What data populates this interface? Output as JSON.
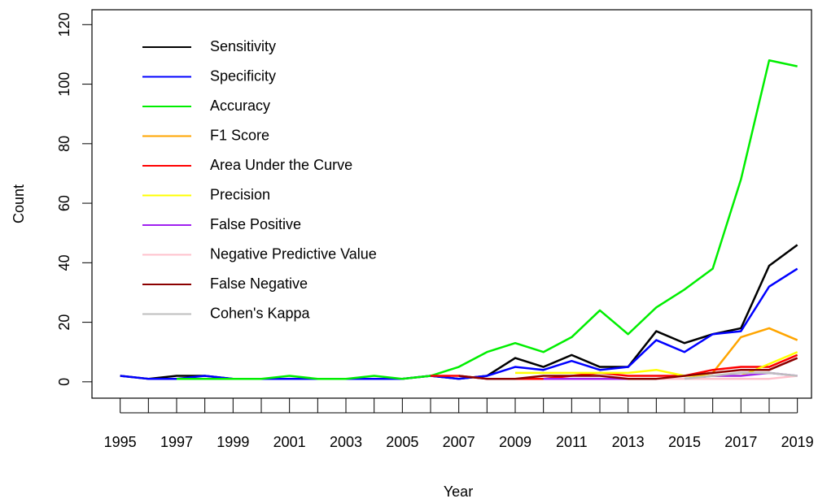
{
  "chart_data": {
    "type": "line",
    "x_label": "Year",
    "y_label": "Count",
    "x": [
      1995,
      1996,
      1997,
      1998,
      1999,
      2000,
      2001,
      2002,
      2003,
      2004,
      2005,
      2006,
      2007,
      2008,
      2009,
      2010,
      2011,
      2012,
      2013,
      2014,
      2015,
      2016,
      2017,
      2018,
      2019
    ],
    "series": [
      {
        "name": "Sensitivity",
        "color": "#000000",
        "values": [
          2,
          1,
          2,
          2,
          1,
          1,
          1,
          1,
          1,
          1,
          1,
          2,
          1,
          2,
          8,
          5,
          9,
          5,
          5,
          17,
          13,
          16,
          18,
          39,
          46
        ]
      },
      {
        "name": "Specificity",
        "color": "#0000ff",
        "values": [
          2,
          1,
          1,
          2,
          1,
          1,
          1,
          1,
          1,
          1,
          1,
          2,
          1,
          2,
          5,
          4,
          7,
          4,
          5,
          14,
          10,
          16,
          17,
          32,
          38
        ]
      },
      {
        "name": "Accuracy",
        "color": "#00ee00",
        "values": [
          null,
          null,
          1,
          1,
          1,
          1,
          2,
          1,
          1,
          2,
          1,
          2,
          5,
          10,
          13,
          10,
          15,
          24,
          16,
          25,
          31,
          38,
          68,
          108,
          106
        ]
      },
      {
        "name": "F1 Score",
        "color": "#ffa500",
        "values": [
          null,
          null,
          null,
          null,
          null,
          null,
          null,
          null,
          null,
          null,
          null,
          null,
          null,
          null,
          null,
          null,
          null,
          null,
          null,
          null,
          2,
          3,
          15,
          18,
          14
        ]
      },
      {
        "name": "Area Under the Curve",
        "color": "#ff0000",
        "values": [
          null,
          null,
          null,
          null,
          null,
          null,
          null,
          null,
          null,
          null,
          null,
          2,
          2,
          1,
          1,
          1,
          2,
          3,
          2,
          2,
          2,
          4,
          5,
          5,
          9
        ]
      },
      {
        "name": "Precision",
        "color": "#ffff00",
        "values": [
          null,
          null,
          null,
          null,
          null,
          null,
          null,
          null,
          null,
          null,
          null,
          null,
          null,
          null,
          3,
          3,
          3,
          3,
          3,
          4,
          2,
          2,
          2,
          6,
          10
        ]
      },
      {
        "name": "False Positive",
        "color": "#a020f0",
        "values": [
          null,
          null,
          null,
          null,
          null,
          null,
          null,
          null,
          null,
          null,
          null,
          null,
          null,
          null,
          null,
          1,
          1,
          1,
          1,
          1,
          1,
          2,
          2,
          3,
          2
        ]
      },
      {
        "name": " Negative Predictive Value",
        "color": "#ffc0cb",
        "values": [
          null,
          null,
          null,
          null,
          null,
          null,
          null,
          null,
          null,
          null,
          null,
          null,
          null,
          null,
          null,
          null,
          null,
          null,
          1,
          1,
          1,
          1,
          1,
          1,
          2
        ]
      },
      {
        "name": "False Negative",
        "color": "#8b0000",
        "values": [
          null,
          null,
          null,
          null,
          null,
          null,
          null,
          null,
          null,
          null,
          null,
          null,
          2,
          1,
          1,
          2,
          2,
          2,
          1,
          1,
          2,
          3,
          4,
          4,
          8
        ]
      },
      {
        "name": "Cohen's Kappa",
        "color": "#bebebe",
        "values": [
          null,
          null,
          null,
          null,
          null,
          null,
          null,
          null,
          null,
          null,
          null,
          null,
          null,
          null,
          null,
          null,
          null,
          null,
          null,
          null,
          1,
          2,
          3,
          3,
          2
        ]
      }
    ],
    "xlim": [
      1994,
      2019.5
    ],
    "ylim": [
      -5.5,
      125
    ],
    "xticks": [
      1995,
      1997,
      1999,
      2001,
      2003,
      2005,
      2007,
      2009,
      2011,
      2013,
      2015,
      2017,
      2019
    ],
    "xminorticks": [
      1996,
      1998,
      2000,
      2002,
      2004,
      2006,
      2008,
      2010,
      2012,
      2014,
      2016,
      2018
    ],
    "yticks": [
      0,
      20,
      40,
      60,
      80,
      100,
      120
    ],
    "legend": "top-left"
  }
}
